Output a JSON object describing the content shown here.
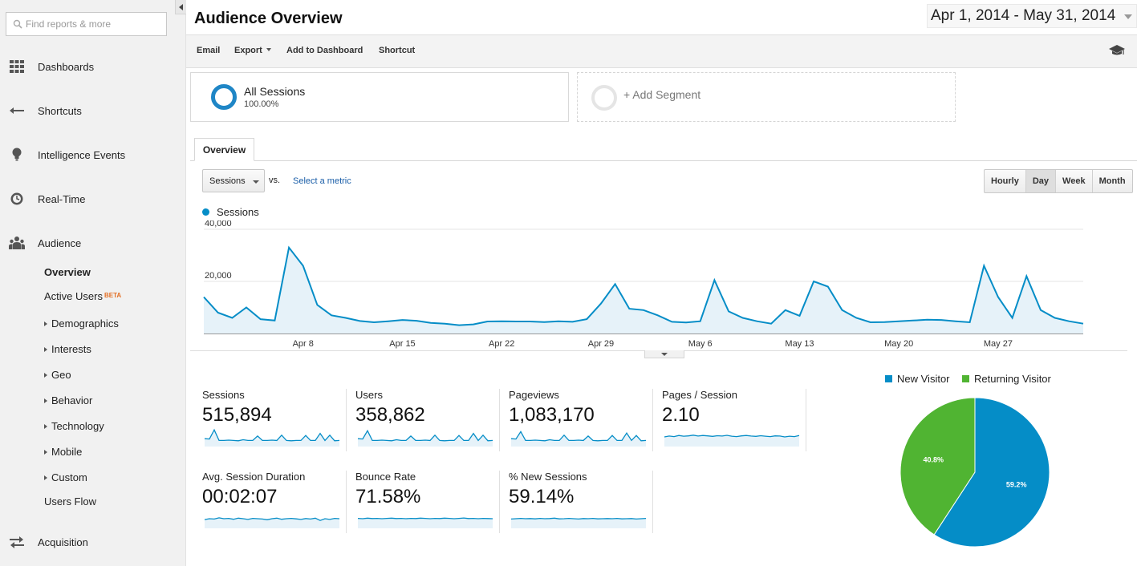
{
  "sidebar": {
    "search_placeholder": "Find reports & more",
    "nav": [
      {
        "label": "Dashboards",
        "icon": "grid-icon"
      },
      {
        "label": "Shortcuts",
        "icon": "shortcut-arrow-icon"
      },
      {
        "label": "Intelligence Events",
        "icon": "lightbulb-icon"
      },
      {
        "label": "Real-Time",
        "icon": "clock-icon"
      },
      {
        "label": "Audience",
        "icon": "people-icon"
      }
    ],
    "audience_items": [
      {
        "label": "Overview",
        "active": true
      },
      {
        "label": "Active Users",
        "badge": "BETA"
      },
      {
        "label": "Demographics",
        "expandable": true
      },
      {
        "label": "Interests",
        "expandable": true
      },
      {
        "label": "Geo",
        "expandable": true
      },
      {
        "label": "Behavior",
        "expandable": true
      },
      {
        "label": "Technology",
        "expandable": true
      },
      {
        "label": "Mobile",
        "expandable": true
      },
      {
        "label": "Custom",
        "expandable": true
      },
      {
        "label": "Users Flow"
      }
    ],
    "acquisition": {
      "label": "Acquisition",
      "icon": "acquisition-icon"
    }
  },
  "header": {
    "title": "Audience Overview",
    "date_range": "Apr 1, 2014 - May 31, 2014"
  },
  "toolbar": {
    "email": "Email",
    "export": "Export",
    "add_to_dashboard": "Add to Dashboard",
    "shortcut": "Shortcut",
    "help_icon": "graduation-cap-icon"
  },
  "segments": {
    "active": {
      "name": "All Sessions",
      "percent": "100.00%"
    },
    "add_label": "+ Add Segment"
  },
  "tabs": {
    "overview": "Overview"
  },
  "controls": {
    "metric": "Sessions",
    "vs": "vs.",
    "select_metric": "Select a metric",
    "granularity": [
      "Hourly",
      "Day",
      "Week",
      "Month"
    ],
    "granularity_active": "Day"
  },
  "colors": {
    "series": "#058dc7",
    "fill": "#e6f2f9",
    "new_visitor": "#058dc7",
    "returning_visitor": "#50b432",
    "link": "#1a5ea8"
  },
  "chart_data": [
    {
      "type": "area",
      "series": [
        {
          "name": "Sessions",
          "values": [
            14000,
            8000,
            6000,
            10000,
            5500,
            5000,
            33000,
            26000,
            11000,
            7000,
            6000,
            4800,
            4300,
            4700,
            5200,
            4900,
            4100,
            3800,
            3200,
            3500,
            4600,
            4700,
            4600,
            4600,
            4400,
            4700,
            4500,
            5500,
            11500,
            19000,
            9500,
            9000,
            7000,
            4500,
            4200,
            4700,
            20500,
            8500,
            6000,
            4700,
            3800,
            9000,
            6800,
            20000,
            18000,
            9000,
            6000,
            4300,
            4400,
            4700,
            5000,
            5300,
            5200,
            4700,
            4300,
            26000,
            14000,
            6000,
            22000,
            9000,
            6000,
            4700,
            3800
          ]
        }
      ],
      "x_tick_labels": [
        "Apr 8",
        "Apr 15",
        "Apr 22",
        "Apr 29",
        "May 6",
        "May 13",
        "May 20",
        "May 27"
      ],
      "y_tick_labels": [
        "20,000",
        "40,000"
      ],
      "ylim": [
        0,
        40000
      ],
      "grid": true
    },
    {
      "type": "pie",
      "slices": [
        {
          "name": "New Visitor",
          "value": 59.2,
          "label": "59.2%"
        },
        {
          "name": "Returning Visitor",
          "value": 40.8,
          "label": "40.8%"
        }
      ],
      "legend_position": "top"
    }
  ],
  "scorecards": [
    {
      "label": "Sessions",
      "value": "515,894",
      "spark": [
        40,
        38,
        90,
        30,
        30,
        32,
        30,
        28,
        34,
        30,
        30,
        55,
        30,
        30,
        32,
        30,
        60,
        30,
        28,
        30,
        30,
        58,
        30,
        30,
        70,
        30,
        60,
        28,
        30
      ]
    },
    {
      "label": "Users",
      "value": "358,862",
      "spark": [
        40,
        38,
        85,
        30,
        30,
        32,
        30,
        28,
        34,
        30,
        30,
        55,
        30,
        30,
        32,
        30,
        60,
        30,
        28,
        30,
        30,
        58,
        30,
        30,
        70,
        30,
        60,
        28,
        30
      ]
    },
    {
      "label": "Pageviews",
      "value": "1,083,170",
      "spark": [
        40,
        38,
        80,
        30,
        30,
        32,
        30,
        28,
        34,
        30,
        30,
        60,
        30,
        30,
        32,
        30,
        55,
        30,
        28,
        30,
        30,
        58,
        30,
        30,
        72,
        30,
        58,
        28,
        30
      ]
    },
    {
      "label": "Pages / Session",
      "value": "2.10",
      "spark": [
        50,
        55,
        52,
        58,
        54,
        56,
        60,
        55,
        58,
        56,
        53,
        57,
        55,
        59,
        54,
        52,
        56,
        58,
        55,
        53,
        57,
        54,
        52,
        56,
        55,
        50,
        54,
        52,
        58
      ]
    },
    {
      "label": "Avg. Session Duration",
      "value": "00:02:07",
      "spark": [
        45,
        50,
        48,
        55,
        50,
        52,
        47,
        53,
        50,
        46,
        52,
        50,
        48,
        44,
        50,
        53,
        47,
        50,
        52,
        49,
        46,
        51,
        48,
        53,
        40,
        50,
        46,
        52,
        50
      ]
    },
    {
      "label": "Bounce Rate",
      "value": "71.58%",
      "spark": [
        52,
        50,
        53,
        51,
        52,
        50,
        52,
        53,
        51,
        52,
        50,
        52,
        51,
        53,
        52,
        50,
        52,
        51,
        53,
        52,
        50,
        52,
        54,
        51,
        52,
        50,
        52,
        51,
        50
      ]
    },
    {
      "label": "% New Sessions",
      "value": "59.14%",
      "spark": [
        48,
        50,
        52,
        50,
        51,
        49,
        52,
        50,
        51,
        53,
        49,
        50,
        52,
        50,
        48,
        51,
        50,
        52,
        49,
        50,
        51,
        50,
        52,
        49,
        50,
        51,
        48,
        50,
        52
      ]
    }
  ]
}
